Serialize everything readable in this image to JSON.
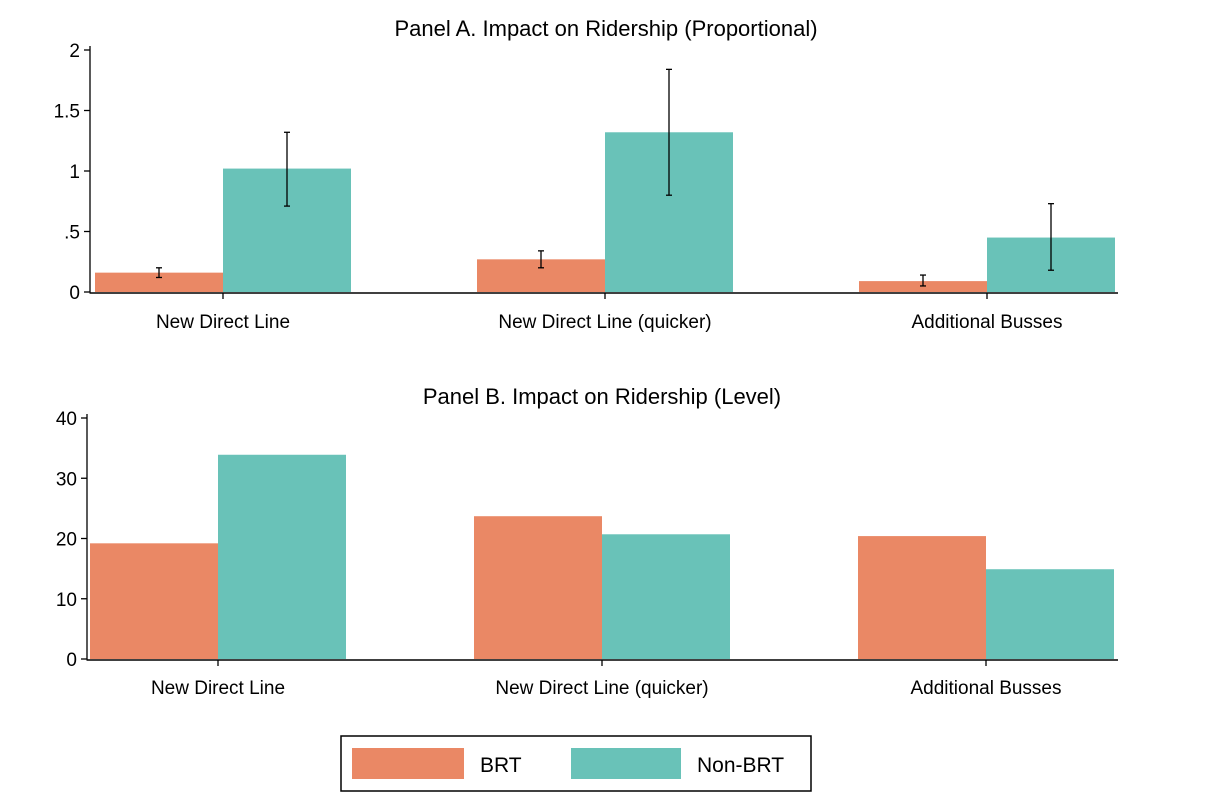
{
  "colors": {
    "BRT": "#ea8865",
    "Non-BRT": "#69c2b8",
    "axis": "#000000",
    "errorbar": "#000000"
  },
  "legend": {
    "items": [
      {
        "name": "BRT"
      },
      {
        "name": "Non-BRT"
      }
    ]
  },
  "chart_data": [
    {
      "type": "bar",
      "title": "Panel A. Impact on Ridership (Proportional)",
      "categories": [
        "New Direct Line",
        "New Direct Line (quicker)",
        "Additional Busses"
      ],
      "ylim": [
        0,
        2
      ],
      "yticks": [
        0,
        0.5,
        1,
        1.5,
        2
      ],
      "ytick_labels": [
        "0",
        ".5",
        "1",
        "1.5",
        "2"
      ],
      "xlabel": "",
      "ylabel": "",
      "grid": false,
      "series": [
        {
          "name": "BRT",
          "values": [
            0.16,
            0.27,
            0.09
          ],
          "ci_low": [
            0.12,
            0.2,
            0.05
          ],
          "ci_high": [
            0.2,
            0.34,
            0.14
          ]
        },
        {
          "name": "Non-BRT",
          "values": [
            1.02,
            1.32,
            0.45
          ],
          "ci_low": [
            0.71,
            0.8,
            0.18
          ],
          "ci_high": [
            1.32,
            1.84,
            0.73
          ]
        }
      ]
    },
    {
      "type": "bar",
      "title": "Panel B. Impact on Ridership (Level)",
      "categories": [
        "New Direct Line",
        "New Direct Line (quicker)",
        "Additional Busses"
      ],
      "ylim": [
        0,
        40
      ],
      "yticks": [
        0,
        10,
        20,
        30,
        40
      ],
      "ytick_labels": [
        "0",
        "10",
        "20",
        "30",
        "40"
      ],
      "xlabel": "",
      "ylabel": "",
      "grid": false,
      "series": [
        {
          "name": "BRT",
          "values": [
            19.2,
            23.7,
            20.4
          ]
        },
        {
          "name": "Non-BRT",
          "values": [
            33.9,
            20.7,
            14.9
          ]
        }
      ]
    }
  ]
}
